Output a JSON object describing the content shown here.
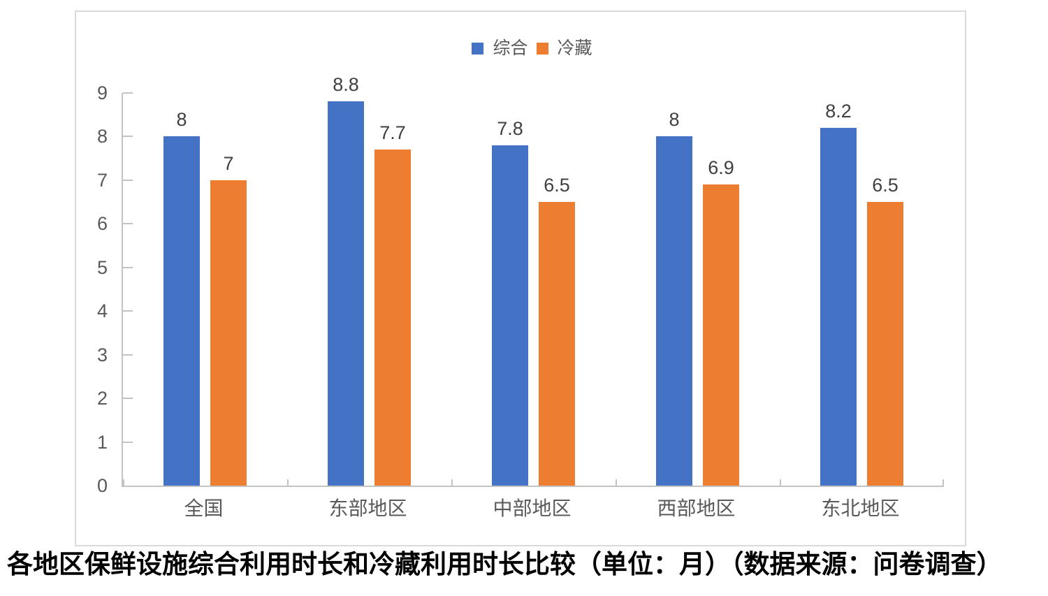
{
  "caption": "各地区保鲜设施综合利用时长和冷藏利用时长比较（单位：月）（数据来源：问卷调查）",
  "chart_data": {
    "type": "bar",
    "title": "各地区保鲜设施综合利用时长和冷藏利用时长比较（单位：月）（数据来源：问卷调查）",
    "categories": [
      "全国",
      "东部地区",
      "中部地区",
      "西部地区",
      "东北地区"
    ],
    "series": [
      {
        "name": "综合",
        "color": "#4472C4",
        "values": [
          8,
          8.8,
          7.8,
          8,
          8.2
        ],
        "labels": [
          "8",
          "8.8",
          "7.8",
          "8",
          "8.2"
        ]
      },
      {
        "name": "冷藏",
        "color": "#ED7D31",
        "values": [
          7,
          7.7,
          6.5,
          6.9,
          6.5
        ],
        "labels": [
          "7",
          "7.7",
          "6.5",
          "6.9",
          "6.5"
        ]
      }
    ],
    "xlabel": "",
    "ylabel": "",
    "ylim": [
      0,
      9
    ],
    "ytick_interval": 1,
    "yticks": [
      "0",
      "1",
      "2",
      "3",
      "4",
      "5",
      "6",
      "7",
      "8",
      "9"
    ],
    "grid": false,
    "legend_position": "top-center",
    "unit": "月"
  },
  "colors": {
    "series_blue": "#4472C4",
    "series_orange": "#ED7D31",
    "axis_line": "#c3c3c3",
    "frame_border": "#d9d9d9",
    "axis_text": "#595959",
    "data_label_text": "#404040",
    "caption_text": "#000000"
  }
}
